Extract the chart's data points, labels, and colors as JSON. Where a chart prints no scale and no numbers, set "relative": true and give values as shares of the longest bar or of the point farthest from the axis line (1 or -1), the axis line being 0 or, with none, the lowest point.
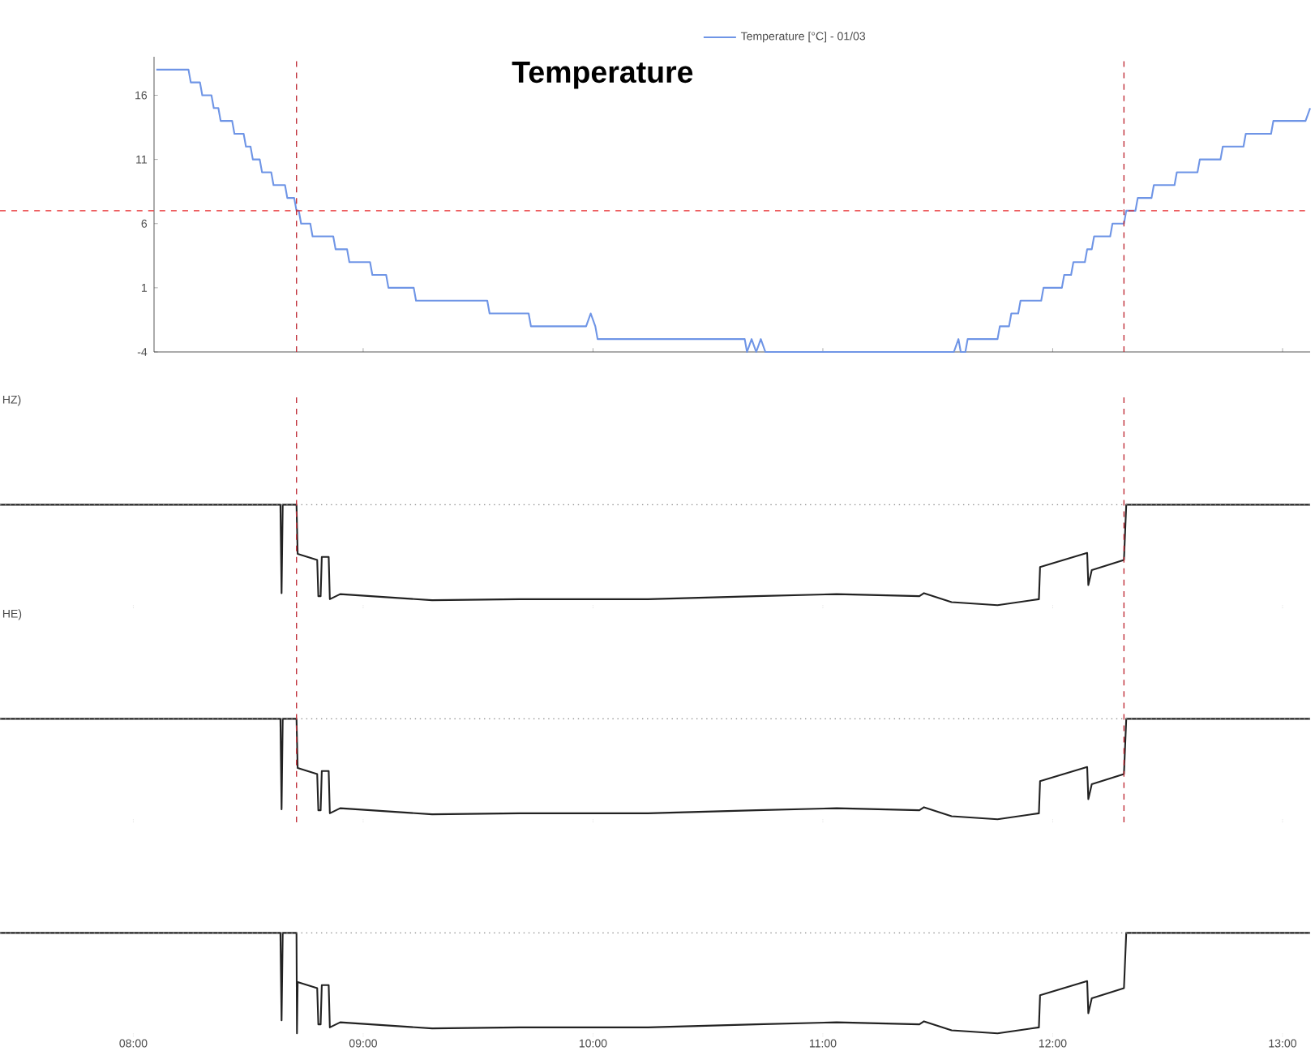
{
  "chart_data": [
    {
      "type": "line",
      "title": "Temperature",
      "legend": "top",
      "tick_labels": "y",
      "xlim": [
        7.42,
        13.12
      ],
      "xticks": [
        {
          "value": 9,
          "label": null
        },
        {
          "value": 10,
          "label": null
        },
        {
          "value": 11,
          "label": null
        },
        {
          "value": 12,
          "label": null
        },
        {
          "value": 13,
          "label": null
        }
      ],
      "ylim": [
        -4,
        19
      ],
      "yticks": [
        -4,
        1,
        6,
        11,
        16
      ],
      "series": [
        {
          "name": "Temperature [°C] - 01/03",
          "color": "#6f95e6",
          "x": [
            8.1,
            8.24,
            8.25,
            8.29,
            8.3,
            8.34,
            8.35,
            8.37,
            8.38,
            8.43,
            8.44,
            8.48,
            8.49,
            8.51,
            8.52,
            8.55,
            8.56,
            8.6,
            8.61,
            8.66,
            8.67,
            8.7,
            8.71,
            8.72,
            8.73,
            8.77,
            8.78,
            8.87,
            8.88,
            8.93,
            8.94,
            9.03,
            9.04,
            9.1,
            9.11,
            9.22,
            9.23,
            9.54,
            9.55,
            9.72,
            9.73,
            9.97,
            9.99,
            10.01,
            10.02,
            10.66,
            10.67,
            10.69,
            10.71,
            10.73,
            10.75,
            11.57,
            11.59,
            11.6,
            11.62,
            11.63,
            11.76,
            11.77,
            11.81,
            11.82,
            11.85,
            11.86,
            11.95,
            11.96,
            12.04,
            12.05,
            12.08,
            12.09,
            12.14,
            12.15,
            12.17,
            12.18,
            12.25,
            12.26,
            12.31,
            12.32,
            12.36,
            12.37,
            12.43,
            12.44,
            12.53,
            12.54,
            12.63,
            12.64,
            12.73,
            12.74,
            12.83,
            12.84,
            12.95,
            12.96,
            13.1,
            13.12
          ],
          "values": [
            18,
            18,
            17,
            17,
            16,
            16,
            15,
            15,
            14,
            14,
            13,
            13,
            12,
            12,
            11,
            11,
            10,
            10,
            9,
            9,
            8,
            8,
            7,
            7,
            6,
            6,
            5,
            5,
            4,
            4,
            3,
            3,
            2,
            2,
            1,
            1,
            0,
            0,
            -1,
            -1,
            -2,
            -2,
            -1,
            -2,
            -3,
            -3,
            -4,
            -3,
            -4,
            -3,
            -4,
            -4,
            -3,
            -4,
            -4,
            -3,
            -3,
            -2,
            -2,
            -1,
            -1,
            0,
            0,
            1,
            1,
            2,
            2,
            3,
            3,
            4,
            4,
            5,
            5,
            6,
            6,
            7,
            7,
            8,
            8,
            9,
            9,
            10,
            10,
            11,
            11,
            12,
            12,
            13,
            13,
            14,
            14,
            15
          ]
        }
      ],
      "ref_lines": [
        {
          "axis": "y",
          "value": 7,
          "color": "#e8282b",
          "line_style": "dashed"
        },
        {
          "axis": "x",
          "value": 8.71,
          "color": "#c0303a",
          "line_style": "dashed"
        },
        {
          "axis": "x",
          "value": 12.31,
          "color": "#c0303a",
          "line_style": "dashed"
        }
      ]
    },
    {
      "type": "line",
      "relative": true,
      "ylabel": "HZ)",
      "tick_labels": false,
      "xlim": [
        7.42,
        13.12
      ],
      "xticks": [
        {
          "value": 8,
          "label": null
        },
        {
          "value": 9,
          "label": null
        },
        {
          "value": 10,
          "label": null
        },
        {
          "value": 11,
          "label": null
        },
        {
          "value": 12,
          "label": null
        },
        {
          "value": 13,
          "label": null
        }
      ],
      "series": [
        {
          "color": "#222222",
          "x": [
            7.42,
            8.64,
            8.645,
            8.65,
            8.71,
            8.715,
            8.8,
            8.805,
            8.815,
            8.82,
            8.85,
            8.855,
            8.9,
            9.3,
            9.68,
            10.24,
            10.71,
            11.06,
            11.42,
            11.44,
            11.56,
            11.76,
            11.94,
            11.945,
            12.15,
            12.155,
            12.17,
            12.31,
            12.32,
            13.12
          ],
          "values": [
            1,
            1,
            0.12,
            1,
            1,
            0.51,
            0.45,
            0.09,
            0.09,
            0.48,
            0.48,
            0.06,
            0.11,
            0.05,
            0.06,
            0.06,
            0.09,
            0.11,
            0.09,
            0.12,
            0.03,
            0,
            0.06,
            0.38,
            0.52,
            0.2,
            0.35,
            0.45,
            1,
            1
          ]
        }
      ],
      "ref_lines": [
        {
          "axis": "y",
          "value": 1,
          "color": "#888888",
          "line_style": "dotted"
        },
        {
          "axis": "x",
          "value": 8.71,
          "color": "#c0303a",
          "line_style": "dashed"
        },
        {
          "axis": "x",
          "value": 12.31,
          "color": "#c0303a",
          "line_style": "dashed"
        }
      ]
    },
    {
      "type": "line",
      "relative": true,
      "ylabel": "HE)",
      "tick_labels": false,
      "xlim": [
        7.42,
        13.12
      ],
      "xticks": [
        {
          "value": 8,
          "label": null
        },
        {
          "value": 9,
          "label": null
        },
        {
          "value": 10,
          "label": null
        },
        {
          "value": 11,
          "label": null
        },
        {
          "value": 12,
          "label": null
        },
        {
          "value": 13,
          "label": null
        }
      ],
      "series": [
        {
          "color": "#222222",
          "x": [
            7.42,
            8.64,
            8.645,
            8.65,
            8.71,
            8.715,
            8.8,
            8.805,
            8.815,
            8.82,
            8.85,
            8.855,
            8.9,
            9.3,
            9.68,
            10.24,
            10.71,
            11.06,
            11.42,
            11.44,
            11.56,
            11.76,
            11.94,
            11.945,
            12.15,
            12.155,
            12.17,
            12.31,
            12.32,
            13.12
          ],
          "values": [
            1,
            1,
            0.1,
            1,
            1,
            0.51,
            0.45,
            0.09,
            0.09,
            0.48,
            0.48,
            0.06,
            0.11,
            0.05,
            0.06,
            0.06,
            0.09,
            0.11,
            0.09,
            0.12,
            0.03,
            0,
            0.06,
            0.38,
            0.52,
            0.2,
            0.35,
            0.45,
            1,
            1
          ]
        }
      ],
      "ref_lines": [
        {
          "axis": "y",
          "value": 1,
          "color": "#888888",
          "line_style": "dotted"
        },
        {
          "axis": "x",
          "value": 8.71,
          "color": "#c0303a",
          "line_style": "dashed"
        },
        {
          "axis": "x",
          "value": 12.31,
          "color": "#c0303a",
          "line_style": "dashed"
        }
      ]
    },
    {
      "type": "line",
      "relative": true,
      "tick_labels": "x",
      "xlim": [
        7.42,
        13.12
      ],
      "xticks": [
        {
          "value": 8,
          "label": "08:00"
        },
        {
          "value": 9,
          "label": "09:00"
        },
        {
          "value": 10,
          "label": "10:00"
        },
        {
          "value": 11,
          "label": "11:00"
        },
        {
          "value": 12,
          "label": "12:00"
        },
        {
          "value": 13,
          "label": "13:00"
        }
      ],
      "series": [
        {
          "color": "#222222",
          "x": [
            7.42,
            8.64,
            8.645,
            8.65,
            8.71,
            8.712,
            8.715,
            8.8,
            8.805,
            8.815,
            8.82,
            8.85,
            8.855,
            8.9,
            9.3,
            9.68,
            10.24,
            10.71,
            11.06,
            11.42,
            11.44,
            11.56,
            11.76,
            11.94,
            11.945,
            12.15,
            12.155,
            12.17,
            12.31,
            12.32,
            13.12
          ],
          "values": [
            1,
            1,
            0.13,
            1,
            1,
            0,
            0.51,
            0.45,
            0.09,
            0.09,
            0.48,
            0.48,
            0.06,
            0.11,
            0.05,
            0.06,
            0.06,
            0.09,
            0.11,
            0.09,
            0.12,
            0.03,
            0,
            0.06,
            0.38,
            0.52,
            0.2,
            0.35,
            0.45,
            1,
            1
          ]
        }
      ],
      "ref_lines": [
        {
          "axis": "y",
          "value": 1,
          "color": "#888888",
          "line_style": "dotted"
        }
      ]
    }
  ]
}
